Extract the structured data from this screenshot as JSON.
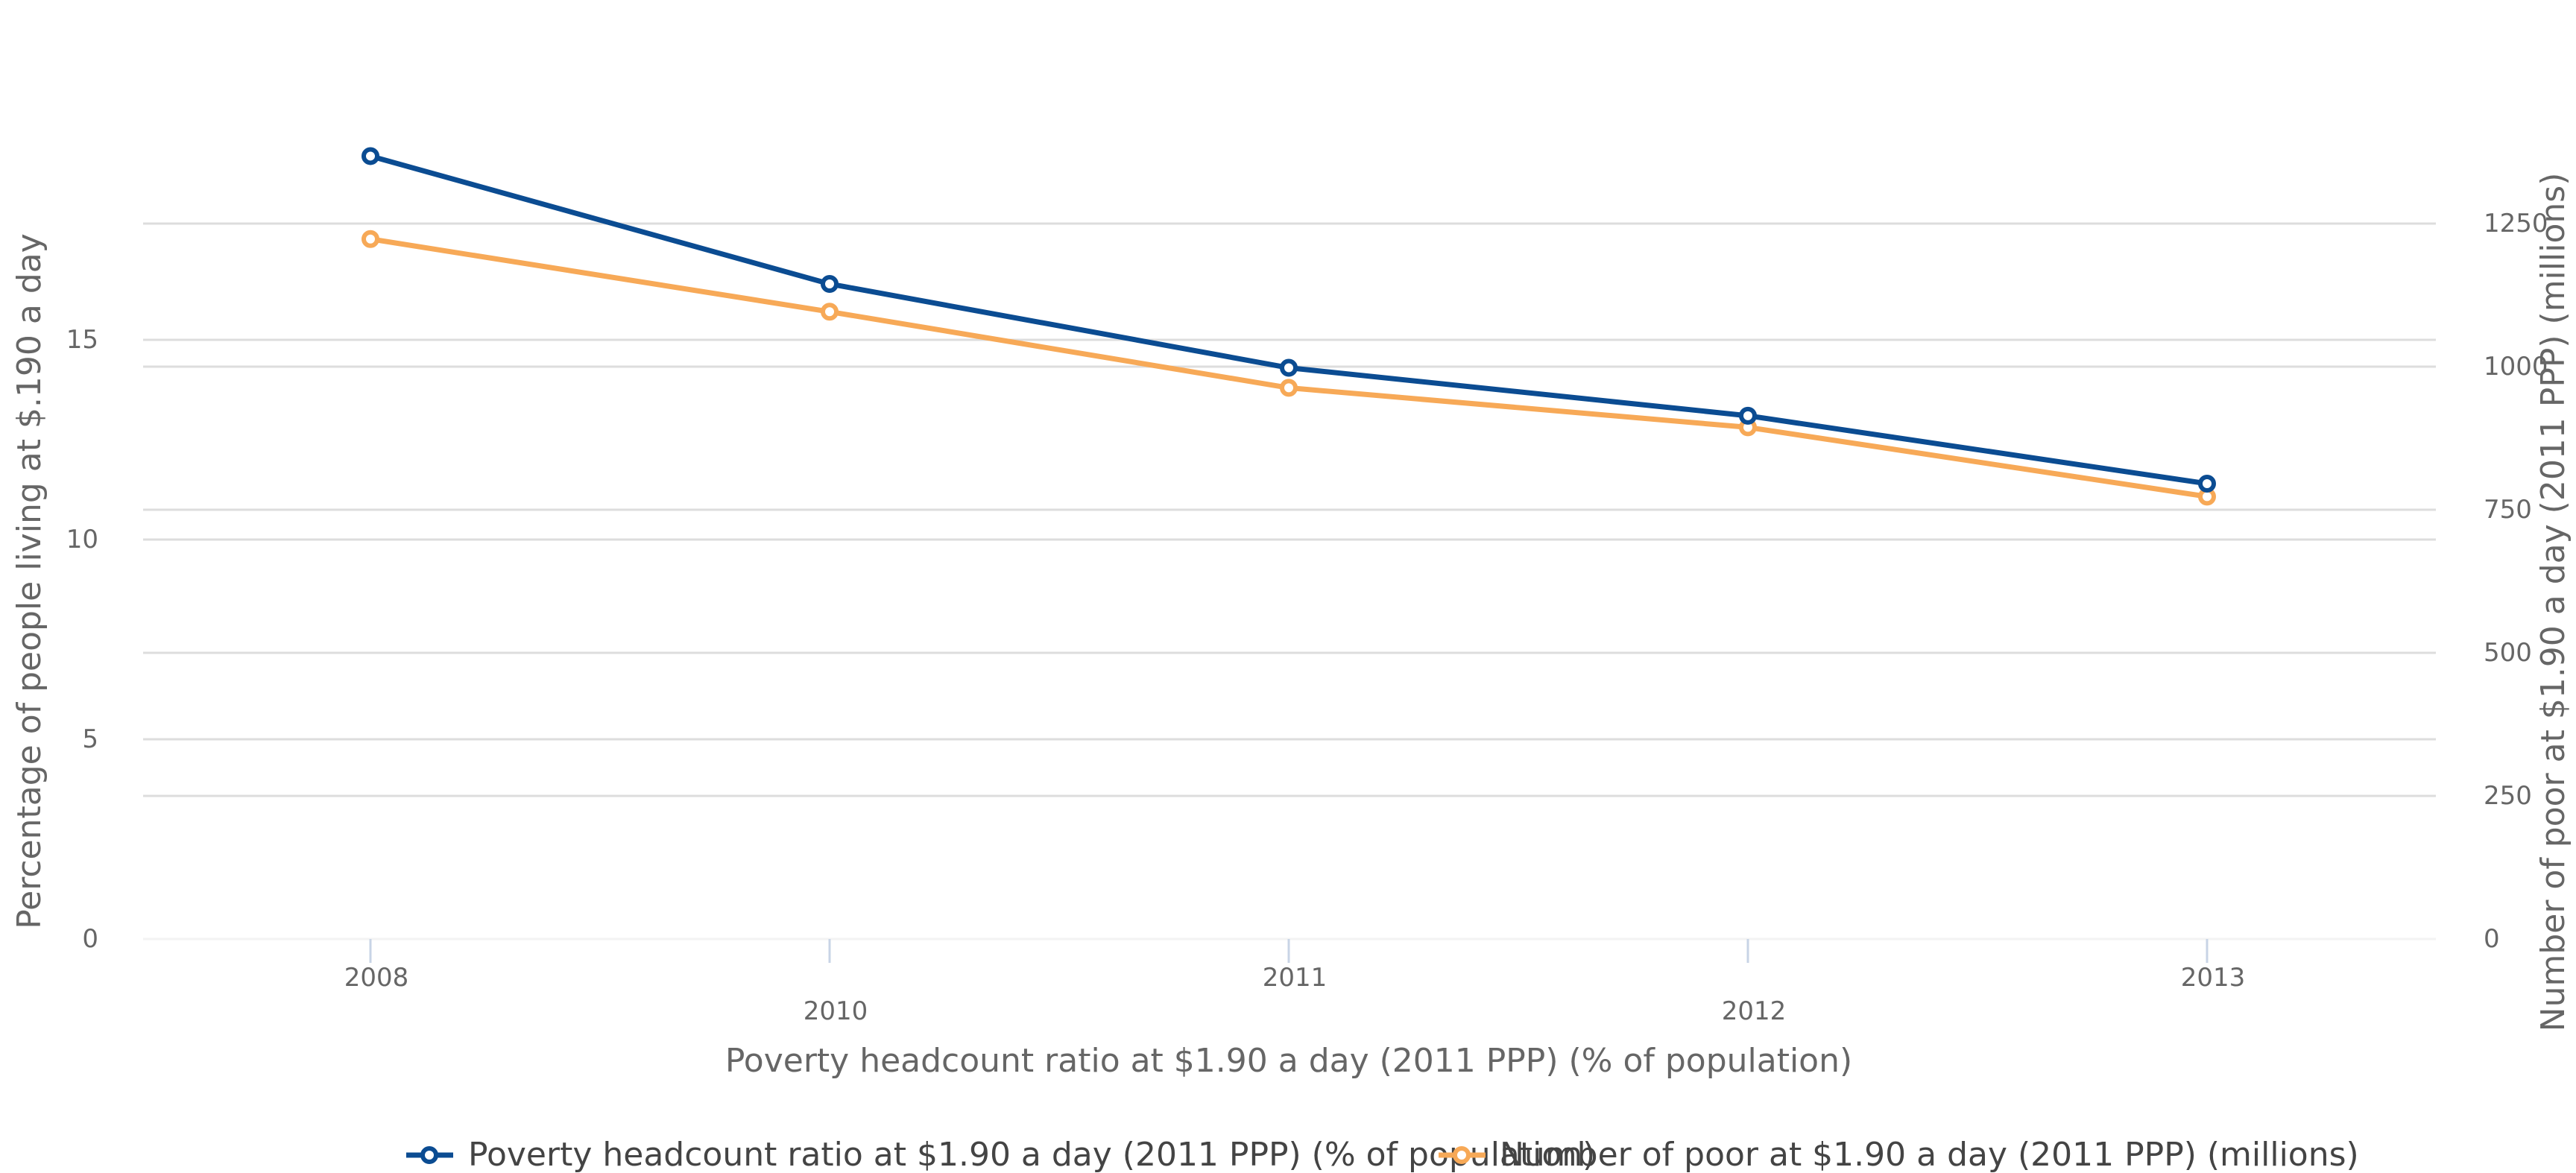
{
  "chart_data": {
    "type": "line",
    "title": "",
    "xlabel": "Poverty headcount ratio at $1.90 a day (2011 PPP) (% of population)",
    "ylabel_left": "Percentage of people living at $.190 a day",
    "ylabel_right": "Number of poor at $1.90 a day (2011 PPP) (millions)",
    "categories": [
      "2008",
      "2010",
      "2011",
      "2012",
      "2013"
    ],
    "ylim_left": [
      0,
      20
    ],
    "yticks_left": [
      "0",
      "5",
      "10",
      "15"
    ],
    "ylim_right": [
      0,
      1250
    ],
    "yticks_right": [
      "0",
      "250",
      "500",
      "750",
      "1000",
      "1250"
    ],
    "grid": true,
    "legend_position": "bottom",
    "series": [
      {
        "name": "Poverty headcount ratio at $1.90 a day (2011 PPP) (% of population)",
        "axis": "left",
        "color": "#0b4c92",
        "values": [
          19.6,
          16.4,
          14.3,
          13.1,
          11.4
        ]
      },
      {
        "name": "Number of poor at $1.90 a day (2011 PPP) (millions)",
        "axis": "right",
        "color": "#f7a957",
        "values": [
          1223,
          1096,
          963,
          894,
          773
        ]
      }
    ]
  }
}
